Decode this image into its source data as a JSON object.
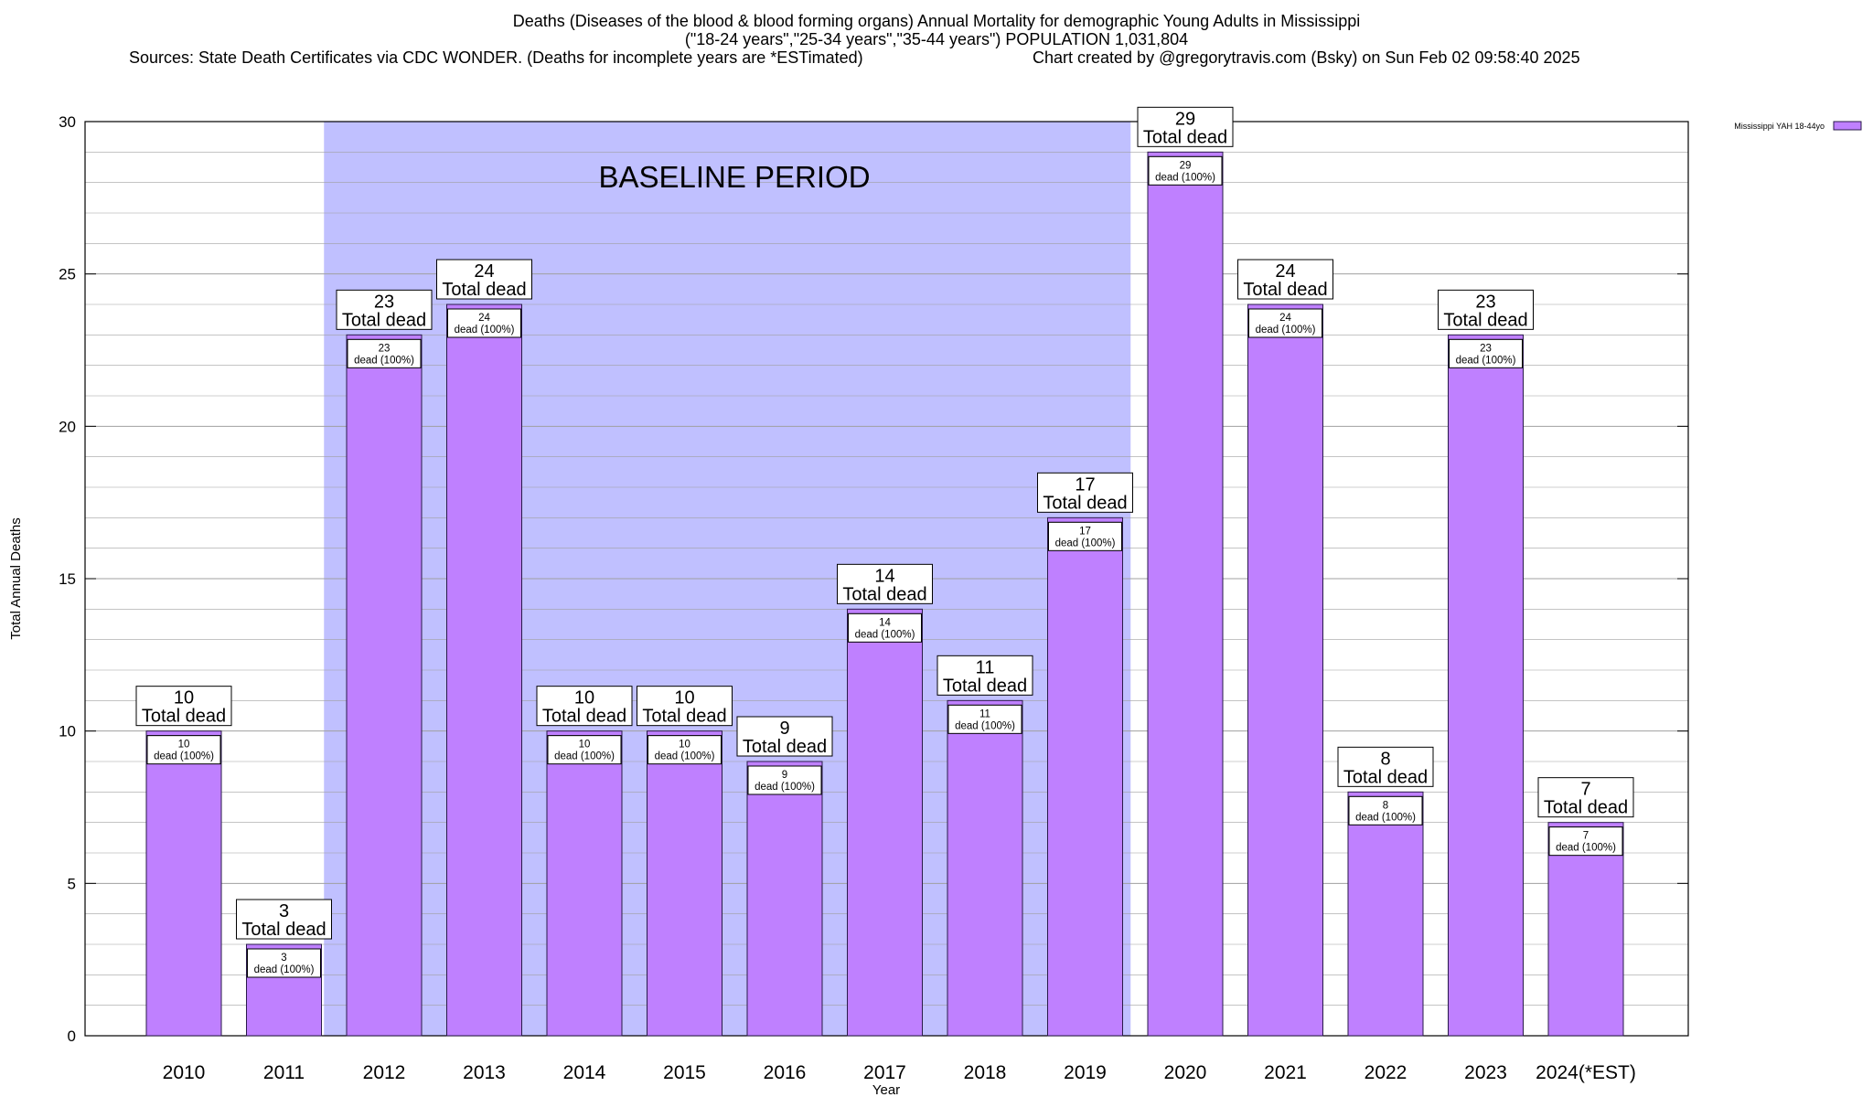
{
  "title": "Deaths (Diseases of the blood & blood forming organs) Annual Mortality for demographic Young Adults in Mississippi",
  "subtitle": "(\"18-24 years\",\"25-34 years\",\"35-44 years\") POPULATION 1,031,804",
  "sources": "Sources: State Death Certificates via CDC WONDER. (Deaths for incomplete years are *ESTimated)",
  "credit": "Chart created by @gregorytravis.com (Bsky) on Sun Feb 02 09:58:40 2025",
  "colors": {
    "bar": "#bf80ff",
    "bar_stroke": "#2a1a4a",
    "baseline_shade": "#c0c0ff",
    "grid": "#a0a0a0"
  },
  "chart_data": {
    "type": "bar",
    "xlabel": "Year",
    "ylabel": "Total Annual Deaths",
    "ylim": [
      0,
      30
    ],
    "yticks": [
      0,
      5,
      10,
      15,
      20,
      25,
      30
    ],
    "grid": true,
    "legend_position": "top-right",
    "categories": [
      "2010",
      "2011",
      "2012",
      "2013",
      "2014",
      "2015",
      "2016",
      "2017",
      "2018",
      "2019",
      "2020",
      "2021",
      "2022",
      "2023",
      "2024(*EST)"
    ],
    "series": [
      {
        "name": "Mississippi YAH 18-44yo",
        "values": [
          10,
          3,
          23,
          24,
          10,
          10,
          9,
          14,
          11,
          17,
          29,
          24,
          8,
          23,
          7
        ]
      }
    ],
    "total_label": "Total dead",
    "inner_labels": [
      "dead (100%)",
      "dead (100%)",
      "dead (100%)",
      "dead (100%)",
      "dead (100%)",
      "dead (100%)",
      "dead (100%)",
      "dead (100%)",
      "dead (100%)",
      "dead (100%)",
      "dead (100%)",
      "dead (100%)",
      "dead (100%)",
      "dead (100%)",
      "dead (100%)"
    ],
    "baseline": {
      "label": "BASELINE PERIOD",
      "from": "2012",
      "to": "2019"
    }
  }
}
